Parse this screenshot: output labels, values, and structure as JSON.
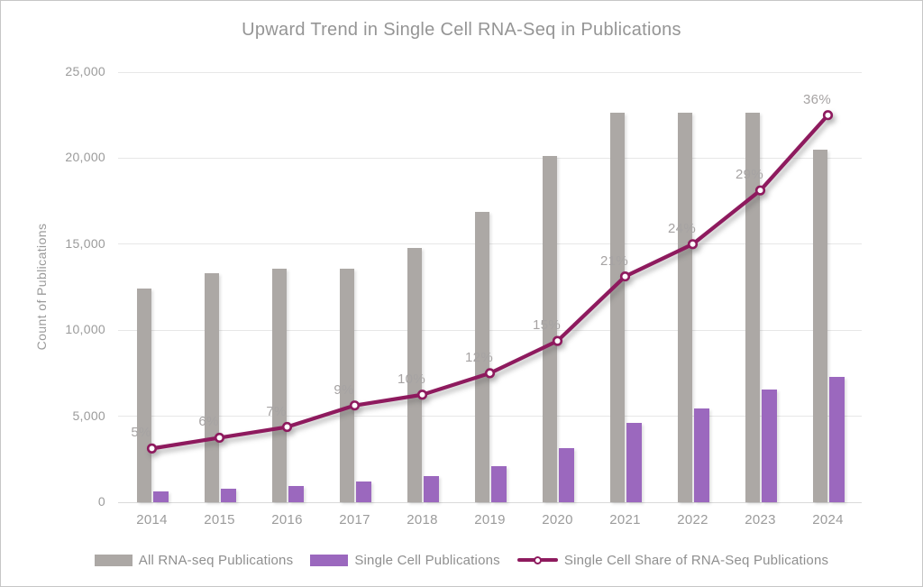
{
  "window": {
    "background": "#ffffff",
    "border_color": "#c6c6c6"
  },
  "text_colors": {
    "title": "#959595",
    "axis_labels": "#9b9b9b",
    "data_labels": "#a6a3a3",
    "legend": "#8f8f8f"
  },
  "chart_data": {
    "type": "combo bar+line",
    "title": "Upward Trend in Single Cell RNA-Seq in Publications",
    "ylabel": "Count of Publications",
    "xlabel": "",
    "categories": [
      "2014",
      "2015",
      "2016",
      "2017",
      "2018",
      "2019",
      "2020",
      "2021",
      "2022",
      "2023",
      "2024"
    ],
    "primary_axis": {
      "min": 0,
      "max": 25000,
      "tick_interval": 5000,
      "tick_labels": [
        "0",
        "5,000",
        "10,000",
        "15,000",
        "20,000",
        "25,000"
      ]
    },
    "secondary_axis": {
      "min": 0,
      "max": 40,
      "labels_visible": false,
      "unit": "%"
    },
    "grid": "horizontal only",
    "legend_position": "bottom",
    "series": [
      {
        "name": "All RNA-seq Publications",
        "type": "bar",
        "color": "#aca8a5",
        "values": [
          12400,
          13300,
          13550,
          13600,
          14800,
          16900,
          20100,
          22650,
          22650,
          22650,
          20500
        ]
      },
      {
        "name": "Single Cell Publications",
        "type": "bar",
        "color": "#9b68be",
        "values": [
          650,
          800,
          950,
          1200,
          1500,
          2100,
          3150,
          4600,
          5450,
          6550,
          7300
        ]
      },
      {
        "name": "Single Cell Share of RNA-Seq Publications",
        "type": "line",
        "axis": "secondary",
        "color": "#8e1a5e",
        "marker": "circle-white-fill",
        "values": [
          5,
          6,
          7,
          9,
          10,
          12,
          15,
          21,
          24,
          29,
          36
        ],
        "data_labels": [
          "5%",
          "6%",
          "7%",
          "9%",
          "10%",
          "12%",
          "15%",
          "21%",
          "24%",
          "29%",
          "36%"
        ]
      }
    ]
  }
}
